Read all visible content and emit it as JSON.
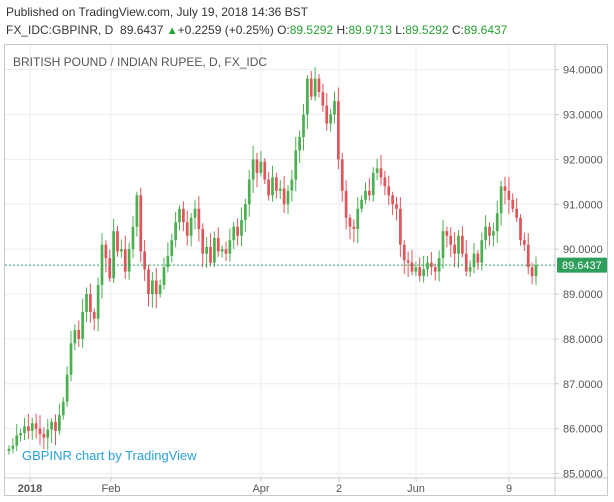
{
  "header": {
    "published": "Published on TradingView.com, July 19, 2018 14:36 BST",
    "symbol": "FX_IDC:GBPINR, D",
    "last": "89.6437",
    "arrow": "▲",
    "change": "+0.2259 (+0.25%)",
    "o_label": "O:",
    "o_value": "89.5292",
    "h_label": "H:",
    "h_value": "89.9713",
    "l_label": "L:",
    "l_value": "89.5292",
    "c_label": "C:",
    "c_value": "89.6437"
  },
  "chart_title": "BRITISH POUND / INDIAN RUPEE, D, FX_IDC",
  "watermark": "GBPINR chart by TradingView",
  "last_price_label": "89.6437",
  "colors": {
    "up": "#4caf50",
    "down": "#e0545a",
    "grid": "#e9eef2",
    "price_line": "#2e9e5b",
    "price_tag": "#2e9e5b",
    "watermark": "#2aa1d9"
  },
  "chart_data": {
    "type": "candlestick",
    "title": "BRITISH POUND / INDIAN RUPEE, D, FX_IDC",
    "ylim": [
      84.9,
      94.55
    ],
    "y_ticks": [
      "94.0000",
      "93.0000",
      "92.0000",
      "91.0000",
      "90.0000",
      "89.0000",
      "88.0000",
      "87.0000",
      "86.0000",
      "85.0000"
    ],
    "x_ticks": [
      "2018",
      "Feb",
      "Apr",
      "2",
      "Jun",
      "9"
    ],
    "last_price": 89.6437,
    "grid": true,
    "closes": [
      85.55,
      85.62,
      85.85,
      85.9,
      86.05,
      85.95,
      86.12,
      86.0,
      85.88,
      85.8,
      85.98,
      86.15,
      85.95,
      86.3,
      86.6,
      87.2,
      87.9,
      88.2,
      88.0,
      88.6,
      89.0,
      88.6,
      88.45,
      89.2,
      90.1,
      89.8,
      89.35,
      90.4,
      89.95,
      90.0,
      89.5,
      90.0,
      90.5,
      91.2,
      89.95,
      89.55,
      89.0,
      89.3,
      89.0,
      89.2,
      89.6,
      89.85,
      90.2,
      90.6,
      90.9,
      90.6,
      90.3,
      90.7,
      90.9,
      90.45,
      89.9,
      90.05,
      89.7,
      90.25,
      89.95,
      90.0,
      89.9,
      90.2,
      90.5,
      90.3,
      90.65,
      91.0,
      91.55,
      92.0,
      91.7,
      91.95,
      91.55,
      91.2,
      91.6,
      91.3,
      91.35,
      91.0,
      91.3,
      91.55,
      92.2,
      92.5,
      93.0,
      93.8,
      93.4,
      93.8,
      93.5,
      93.2,
      92.8,
      93.0,
      93.3,
      92.0,
      91.3,
      90.7,
      90.5,
      90.45,
      90.9,
      91.1,
      91.3,
      91.2,
      91.7,
      91.8,
      91.6,
      91.4,
      91.2,
      91.0,
      90.9,
      90.1,
      89.75,
      89.7,
      89.5,
      89.6,
      89.4,
      89.55,
      89.7,
      89.6,
      89.5,
      89.8,
      90.4,
      90.3,
      90.1,
      89.9,
      90.3,
      89.9,
      89.5,
      89.6,
      89.9,
      89.7,
      90.2,
      90.5,
      90.3,
      90.4,
      90.8,
      91.4,
      91.3,
      91.1,
      90.9,
      90.7,
      90.2,
      90.1,
      89.6,
      89.4,
      89.6437
    ]
  }
}
